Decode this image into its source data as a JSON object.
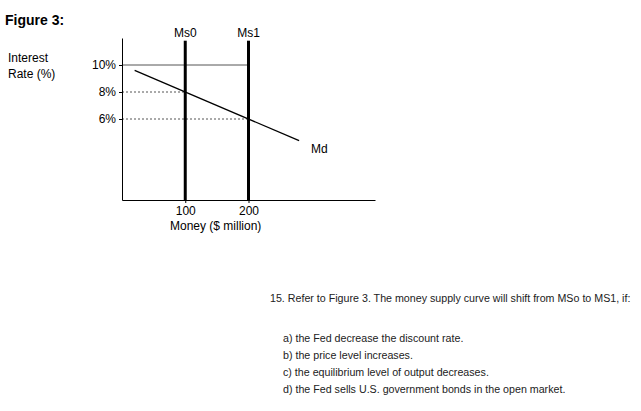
{
  "chart_data": {
    "type": "line",
    "title": "Figure 3:",
    "y_label": [
      "Interest",
      "Rate (%)"
    ],
    "x_label": "Money ($ million)",
    "xlim": [
      0,
      400
    ],
    "ylim": [
      0,
      12
    ],
    "xticks": [
      100,
      200
    ],
    "yticks": [
      {
        "value": 6,
        "label": "6%"
      },
      {
        "value": 8,
        "label": "8%"
      },
      {
        "value": 10,
        "label": "10%"
      }
    ],
    "series": [
      {
        "name": "Ms0",
        "color": "#000000",
        "x": [
          100,
          100
        ],
        "values": [
          0,
          11.8
        ]
      },
      {
        "name": "Ms1",
        "color": "#000000",
        "x": [
          200,
          200
        ],
        "values": [
          0,
          11.8
        ]
      },
      {
        "name": "Md",
        "color": "#000000",
        "x": [
          20,
          280
        ],
        "values": [
          9.6,
          4.4
        ]
      }
    ],
    "guides": [
      {
        "y": 10,
        "x": 200
      },
      {
        "y": 8,
        "x": 100
      },
      {
        "y": 6,
        "x": 200
      }
    ]
  },
  "question": {
    "text": "15. Refer to Figure 3. The money supply curve will shift from MSo to MS1, if:",
    "options": [
      "a) the Fed decrease the discount rate.",
      "b) the price level increases.",
      "c) the equilibrium level of output decreases.",
      "d) the Fed sells U.S. government bonds in the open market."
    ]
  }
}
